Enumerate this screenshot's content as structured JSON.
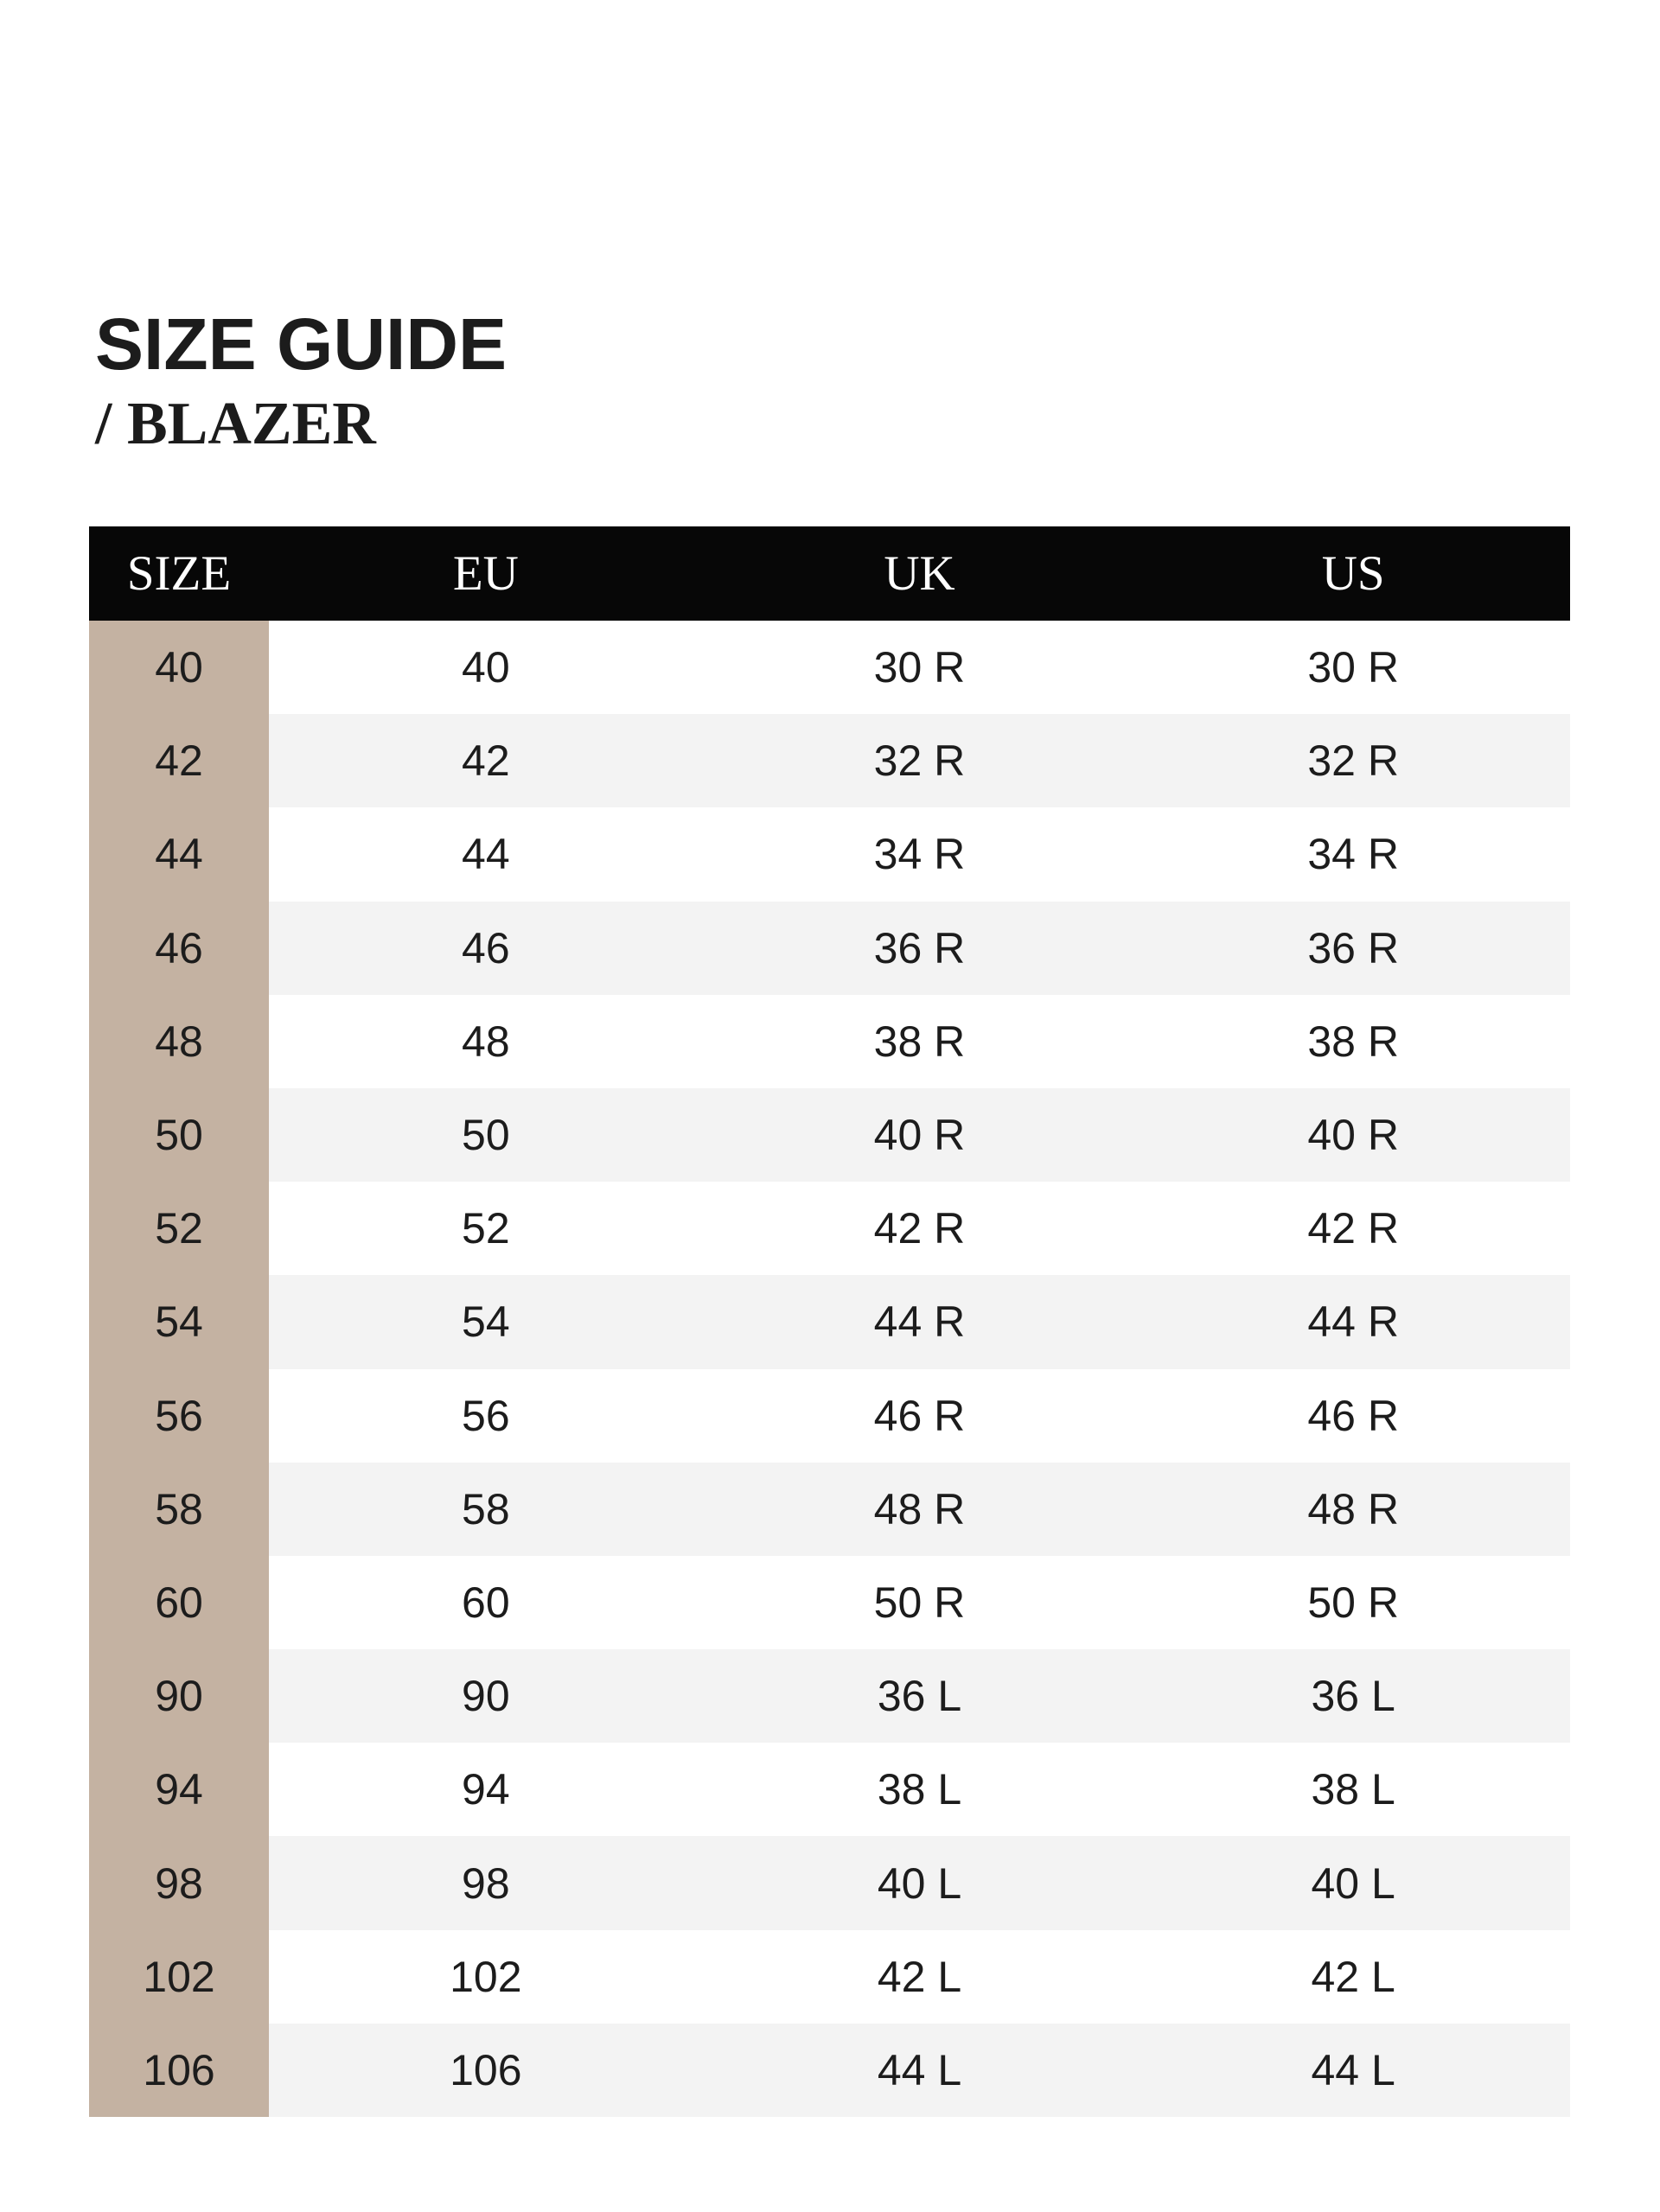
{
  "page": {
    "title": "SIZE GUIDE",
    "subtitle": "/ BLAZER"
  },
  "table": {
    "columns": [
      "SIZE",
      "EU",
      "UK",
      "US"
    ],
    "rows": [
      [
        "40",
        "40",
        "30 R",
        "30 R"
      ],
      [
        "42",
        "42",
        "32 R",
        "32 R"
      ],
      [
        "44",
        "44",
        "34 R",
        "34 R"
      ],
      [
        "46",
        "46",
        "36 R",
        "36 R"
      ],
      [
        "48",
        "48",
        "38 R",
        "38 R"
      ],
      [
        "50",
        "50",
        "40 R",
        "40 R"
      ],
      [
        "52",
        "52",
        "42 R",
        "42 R"
      ],
      [
        "54",
        "54",
        "44 R",
        "44 R"
      ],
      [
        "56",
        "56",
        "46 R",
        "46 R"
      ],
      [
        "58",
        "58",
        "48 R",
        "48 R"
      ],
      [
        "60",
        "60",
        "50 R",
        "50 R"
      ],
      [
        "90",
        "90",
        "36 L",
        "36 L"
      ],
      [
        "94",
        "94",
        "38 L",
        "38 L"
      ],
      [
        "98",
        "98",
        "40 L",
        "40 L"
      ],
      [
        "102",
        "102",
        "42 L",
        "42 L"
      ],
      [
        "106",
        "106",
        "44 L",
        "44 L"
      ]
    ]
  },
  "colors": {
    "header_bg": "#070707",
    "header_text": "#ffffff",
    "size_col_bg": "#c4b2a2",
    "zebra_bg": "#f3f3f3",
    "row_bg": "#ffffff",
    "text": "#1c1c1c"
  }
}
